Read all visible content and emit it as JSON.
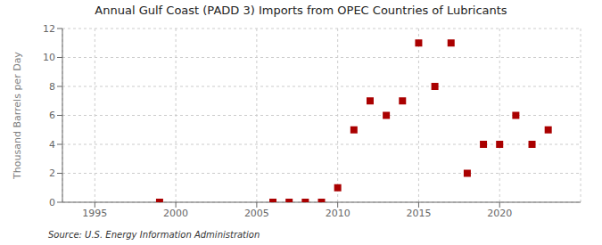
{
  "chart_data": {
    "type": "scatter",
    "title": "Annual Gulf Coast (PADD 3) Imports from OPEC Countries of Lubricants",
    "ylabel": "Thousand Barrels per Day",
    "annotations": [
      "Source: U.S. Energy Information Administration"
    ],
    "x": [
      1999,
      2006,
      2007,
      2008,
      2009,
      2010,
      2011,
      2012,
      2013,
      2014,
      2015,
      2016,
      2017,
      2018,
      2019,
      2020,
      2021,
      2022,
      2023
    ],
    "values": [
      0,
      0,
      0,
      0,
      0,
      1,
      5,
      7,
      6,
      7,
      11,
      8,
      11,
      2,
      4,
      4,
      6,
      4,
      5
    ],
    "color": "#aa0000",
    "marker": "square",
    "xlim": [
      1993,
      2025
    ],
    "ylim": [
      0,
      12
    ],
    "xticks": [
      1995,
      2000,
      2005,
      2010,
      2015,
      2020
    ],
    "yticks": [
      0,
      2,
      4,
      6,
      8,
      10,
      12
    ],
    "grid": true
  }
}
